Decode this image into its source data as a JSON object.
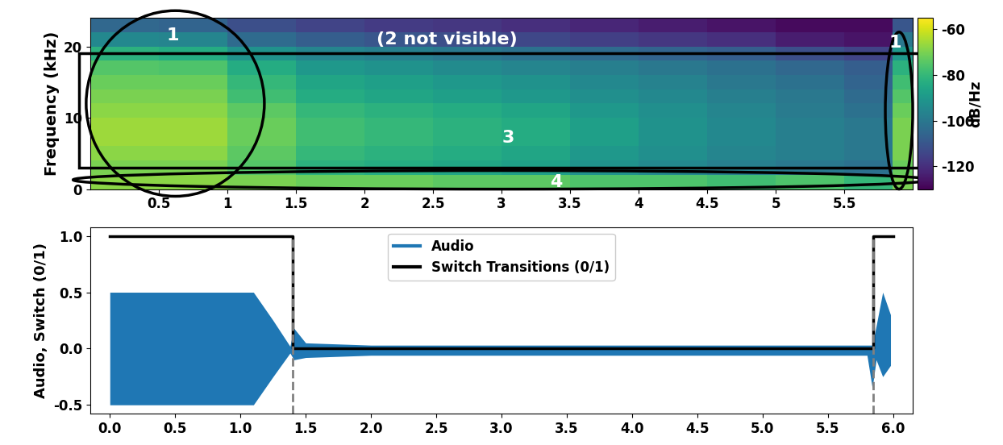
{
  "chart_data": [
    {
      "type": "heatmap",
      "y_label": "Frequency (kHz)",
      "xlim": [
        0,
        6.0
      ],
      "xticks": [
        0.5,
        1,
        1.5,
        2,
        2.5,
        3,
        3.5,
        4,
        4.5,
        5,
        5.5
      ],
      "ylim": [
        0,
        24
      ],
      "yticks": [
        0,
        10,
        20
      ],
      "x_edges": [
        0,
        0.5,
        1,
        1.5,
        2,
        2.5,
        3,
        3.5,
        4,
        4.5,
        5,
        5.5,
        5.85,
        6.0
      ],
      "y_edges": [
        0,
        2,
        4,
        6,
        8,
        10,
        12,
        14,
        16,
        18,
        20,
        22,
        24
      ],
      "cells": [
        [
          -68,
          -68,
          -70,
          -72,
          -72,
          -74,
          -74,
          -76,
          -76,
          -78,
          -76,
          -80,
          -70
        ],
        [
          -70,
          -70,
          -75,
          -82,
          -84,
          -86,
          -88,
          -92,
          -95,
          -98,
          -100,
          -102,
          -72
        ],
        [
          -68,
          -68,
          -74,
          -80,
          -82,
          -84,
          -86,
          -90,
          -93,
          -96,
          -98,
          -100,
          -70
        ],
        [
          -66,
          -66,
          -72,
          -78,
          -80,
          -82,
          -84,
          -88,
          -92,
          -95,
          -98,
          -100,
          -70
        ],
        [
          -66,
          -66,
          -72,
          -78,
          -80,
          -82,
          -84,
          -88,
          -92,
          -95,
          -98,
          -100,
          -70
        ],
        [
          -68,
          -68,
          -74,
          -80,
          -82,
          -84,
          -86,
          -90,
          -93,
          -96,
          -99,
          -102,
          -72
        ],
        [
          -70,
          -70,
          -78,
          -84,
          -86,
          -88,
          -90,
          -93,
          -95,
          -98,
          -100,
          -104,
          -75
        ],
        [
          -72,
          -72,
          -80,
          -86,
          -88,
          -90,
          -92,
          -95,
          -97,
          -100,
          -102,
          -106,
          -78
        ],
        [
          -75,
          -76,
          -84,
          -90,
          -92,
          -94,
          -96,
          -98,
          -100,
          -102,
          -105,
          -108,
          -82
        ],
        [
          -82,
          -84,
          -92,
          -96,
          -98,
          -100,
          -102,
          -104,
          -106,
          -108,
          -112,
          -115,
          -90
        ],
        [
          -95,
          -96,
          -104,
          -108,
          -110,
          -112,
          -114,
          -116,
          -118,
          -120,
          -124,
          -126,
          -100
        ],
        [
          -105,
          -106,
          -112,
          -115,
          -117,
          -118,
          -120,
          -122,
          -124,
          -126,
          -128,
          -128,
          -110
        ]
      ],
      "colorbar_label": "dB/Hz",
      "colorbar_range": [
        -130,
        -55
      ],
      "colorbar_ticks": [
        -60,
        -80,
        -100,
        -120
      ],
      "annotations": [
        "1",
        "(2 not visible)",
        "1",
        "3",
        "4"
      ]
    },
    {
      "type": "line",
      "y_label": "Audio, Switch (0/1)",
      "xlim": [
        -0.15,
        6.15
      ],
      "xticks": [
        {
          "value": 0,
          "label": "0.0"
        },
        {
          "value": 0.5,
          "label": "0.5"
        },
        {
          "value": 1,
          "label": "1.0"
        },
        {
          "value": 1.5,
          "label": "1.5"
        },
        {
          "value": 2,
          "label": "2.0"
        },
        {
          "value": 2.5,
          "label": "2.5"
        },
        {
          "value": 3,
          "label": "3.0"
        },
        {
          "value": 3.5,
          "label": "3.5"
        },
        {
          "value": 4,
          "label": "4.0"
        },
        {
          "value": 4.5,
          "label": "4.5"
        },
        {
          "value": 5,
          "label": "5.0"
        },
        {
          "value": 5.5,
          "label": "5.5"
        },
        {
          "value": 6,
          "label": "6.0"
        }
      ],
      "ylim": [
        -0.58,
        1.08
      ],
      "yticks": [
        {
          "value": -0.5,
          "label": "-0.5"
        },
        {
          "value": 0,
          "label": "0.0"
        },
        {
          "value": 0.5,
          "label": "0.5"
        },
        {
          "value": 1,
          "label": "1.0"
        }
      ],
      "legend": "upper center",
      "series": [
        {
          "name": "Audio",
          "type": "envelope",
          "color": "#1f77b4",
          "x": [
            0,
            0.05,
            1.0,
            1.1,
            1.25,
            1.38,
            1.41,
            1.5,
            2.0,
            5.2,
            5.8,
            5.84,
            5.87,
            5.92,
            5.98
          ],
          "upper": [
            0.5,
            0.5,
            0.5,
            0.5,
            0.25,
            0.02,
            0.18,
            0.05,
            0.03,
            0.03,
            0.03,
            0.03,
            0.2,
            0.5,
            0.3
          ],
          "lower": [
            -0.5,
            -0.5,
            -0.5,
            -0.5,
            -0.25,
            -0.04,
            -0.1,
            -0.08,
            -0.06,
            -0.06,
            -0.06,
            -0.35,
            -0.1,
            -0.25,
            -0.15
          ]
        },
        {
          "name": "Switch Transitions (0/1)",
          "type": "line",
          "color": "#000000",
          "x": [
            0,
            1.4,
            1.4,
            5.85,
            5.85,
            6.0
          ],
          "values": [
            1,
            1,
            0,
            0,
            1,
            1
          ]
        }
      ],
      "transitions": [
        1.4,
        5.85
      ]
    }
  ]
}
